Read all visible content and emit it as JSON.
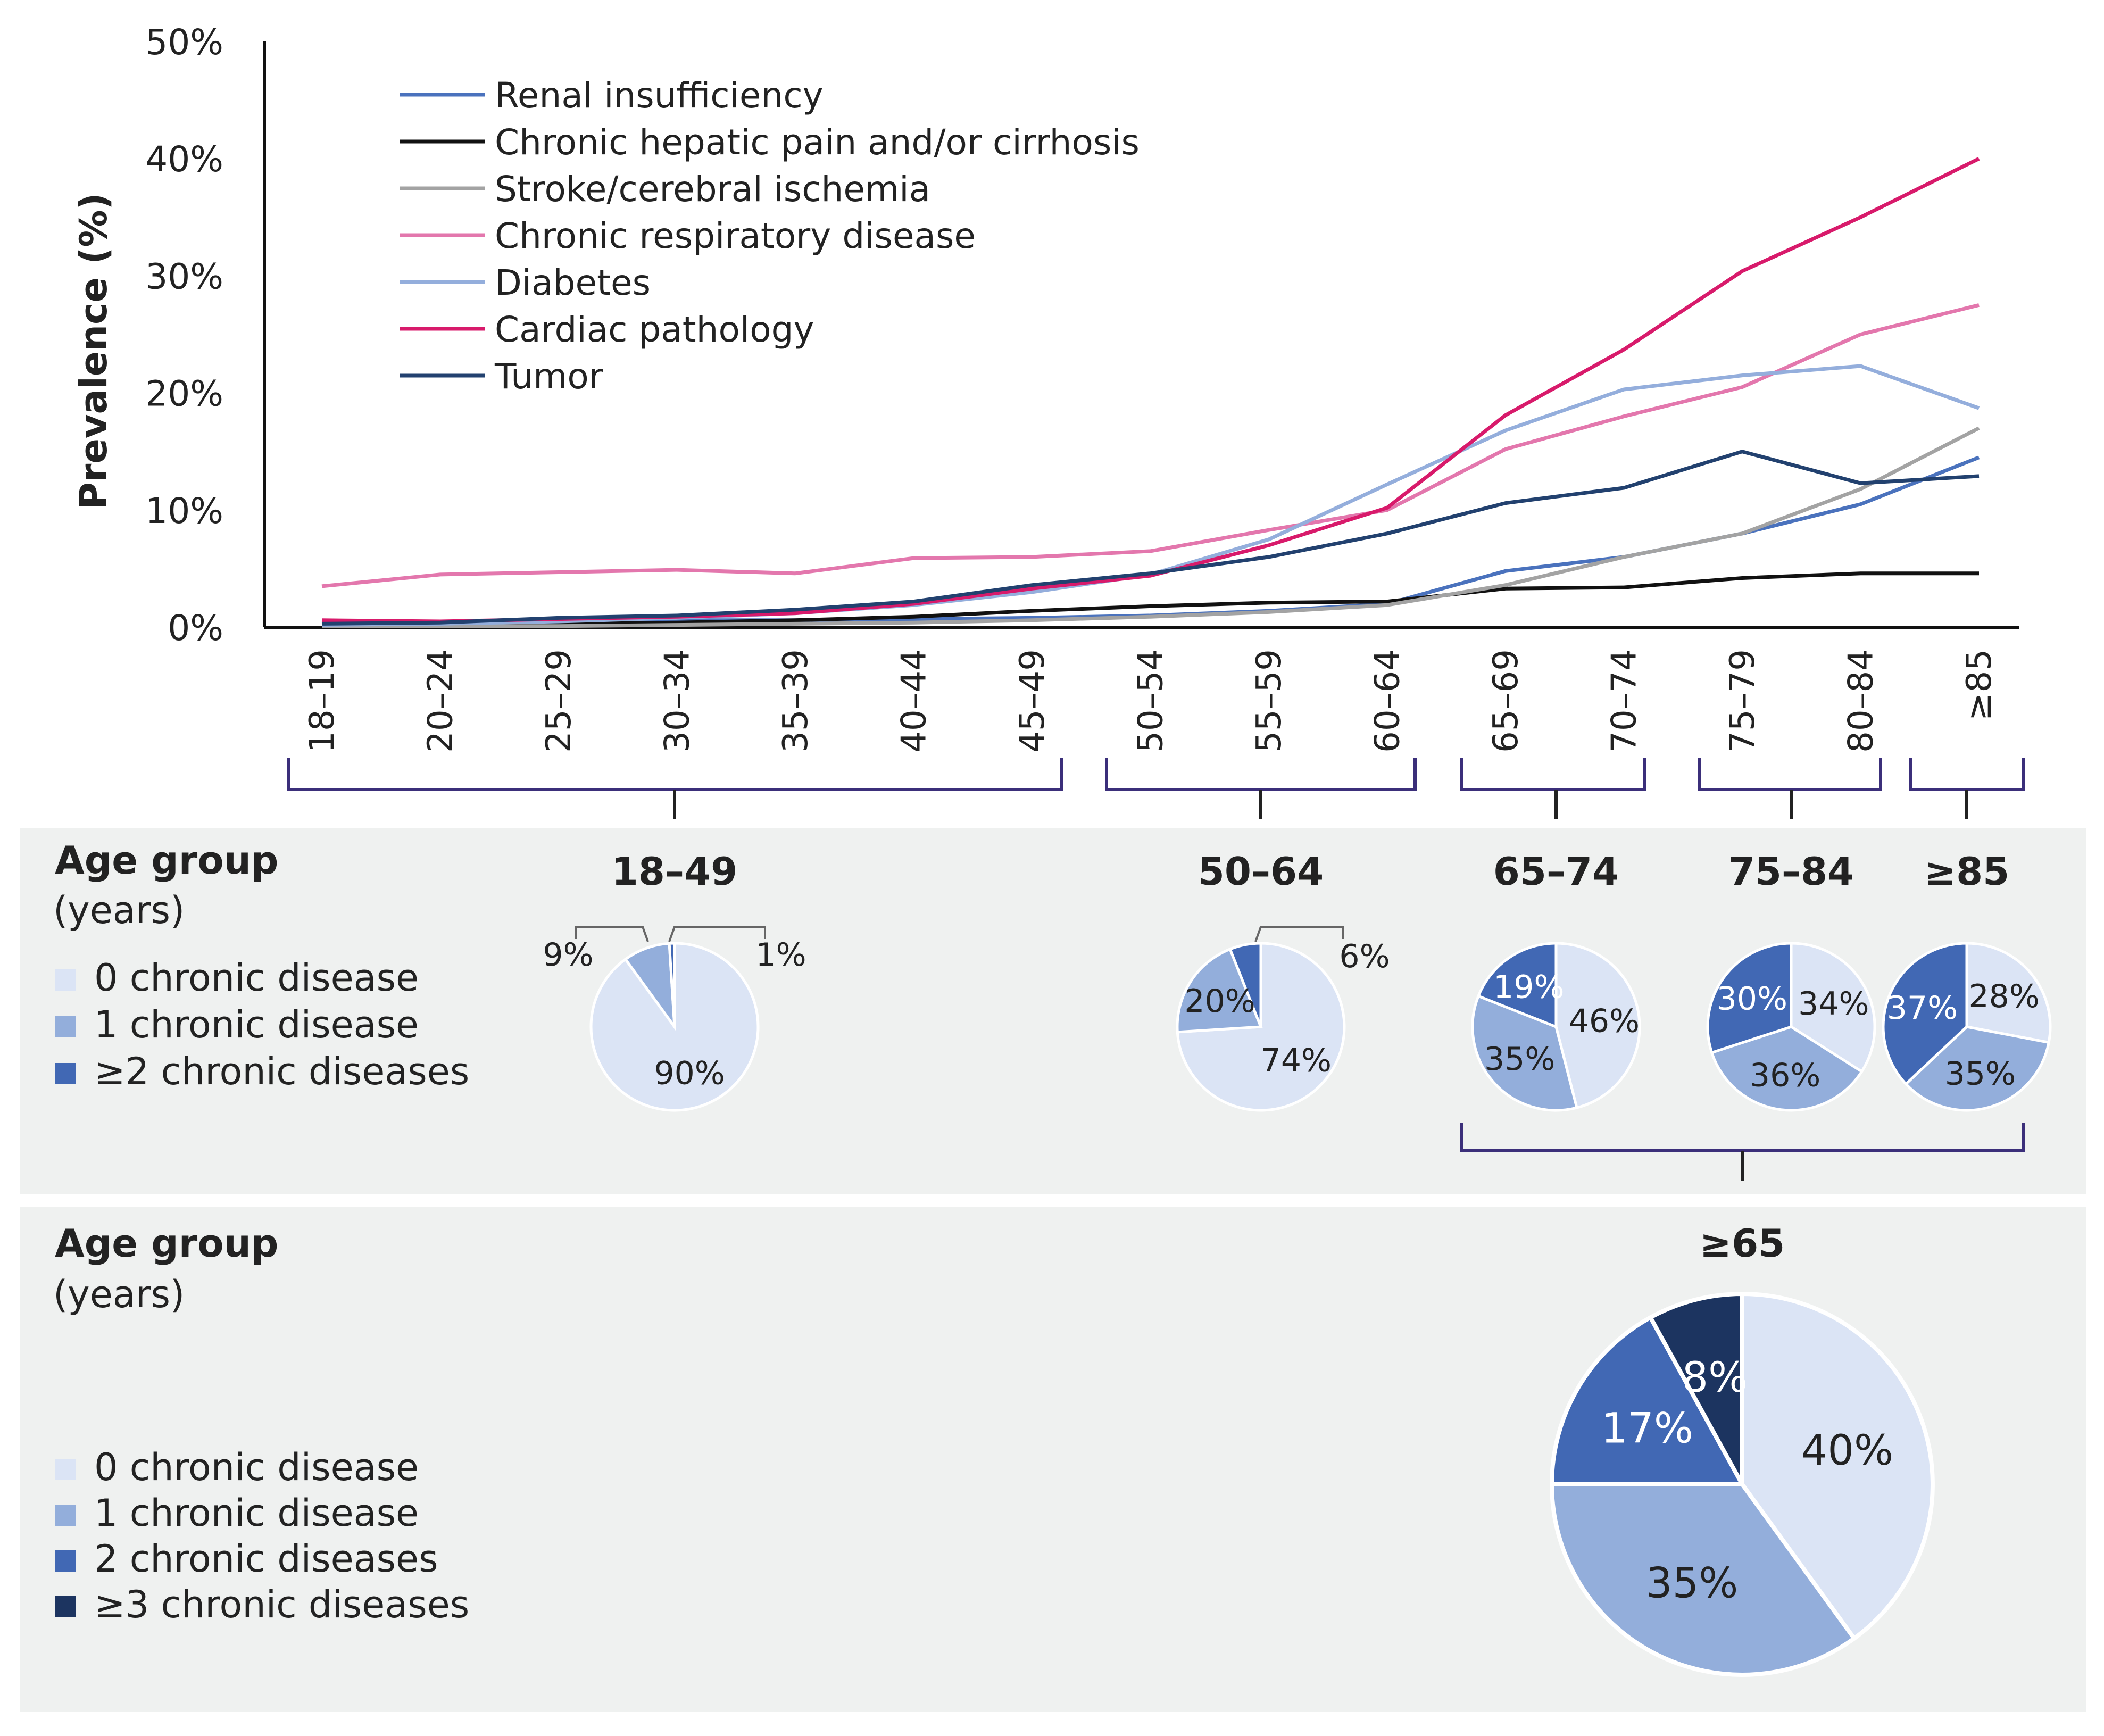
{
  "colors": {
    "renal": "#4a72bd",
    "hepatic": "#111111",
    "stroke": "#a3a3a3",
    "respiratory": "#e377ad",
    "diabetes": "#94aedc",
    "cardiac": "#d81a6b",
    "tumor": "#22416f",
    "pie0": "#dbe4f5",
    "pie1": "#93aedb",
    "pie2": "#4168b4",
    "pie3": "#1c3460",
    "bracket": "#3b2f7a",
    "panel": "#eff1f0"
  },
  "chart_data": [
    {
      "type": "line",
      "title": "",
      "xlabel": "",
      "ylabel": "Prevalence (%)",
      "ylim": [
        0,
        50
      ],
      "yticks": [
        "0%",
        "10%",
        "20%",
        "30%",
        "40%",
        "50%"
      ],
      "categories": [
        "18–19",
        "20–24",
        "25–29",
        "30–34",
        "35–39",
        "40–44",
        "45–49",
        "50–54",
        "55–59",
        "60–64",
        "65–69",
        "70–74",
        "75–79",
        "80–84",
        "≥85"
      ],
      "legend_position": "top-left",
      "series": [
        {
          "key": "renal",
          "name": "Renal insufficiency",
          "values": [
            0.3,
            0.3,
            0.5,
            0.6,
            0.6,
            0.7,
            0.8,
            1.0,
            1.4,
            2.0,
            4.8,
            6.0,
            8.0,
            10.5,
            14.5
          ]
        },
        {
          "key": "hepatic",
          "name": "Chronic hepatic pain and/or cirrhosis",
          "values": [
            0.2,
            0.2,
            0.3,
            0.4,
            0.6,
            0.9,
            1.4,
            1.8,
            2.1,
            2.2,
            3.3,
            3.4,
            4.2,
            4.6,
            4.6
          ]
        },
        {
          "key": "stroke",
          "name": "Stroke/cerebral ischemia",
          "values": [
            0.1,
            0.1,
            0.1,
            0.2,
            0.3,
            0.4,
            0.6,
            0.9,
            1.3,
            1.9,
            3.6,
            6.0,
            8.0,
            11.8,
            17.0
          ]
        },
        {
          "key": "respiratory",
          "name": "Chronic respiratory disease",
          "values": [
            3.5,
            4.5,
            4.7,
            4.9,
            4.6,
            5.9,
            6.0,
            6.5,
            8.3,
            10.0,
            15.2,
            18.0,
            20.5,
            25.0,
            27.5
          ]
        },
        {
          "key": "diabetes",
          "name": "Diabetes",
          "values": [
            0.2,
            0.3,
            0.5,
            0.8,
            1.2,
            1.9,
            3.0,
            4.5,
            7.5,
            12.2,
            16.8,
            20.3,
            21.5,
            22.3,
            18.7
          ]
        },
        {
          "key": "cardiac",
          "name": "Cardiac pathology",
          "values": [
            0.6,
            0.5,
            0.7,
            0.9,
            1.2,
            2.0,
            3.3,
            4.4,
            7.0,
            10.2,
            18.1,
            23.7,
            30.4,
            35.0,
            40.0
          ]
        },
        {
          "key": "tumor",
          "name": "Tumor",
          "values": [
            0.3,
            0.4,
            0.8,
            1.0,
            1.5,
            2.2,
            3.6,
            4.6,
            6.0,
            8.0,
            10.6,
            11.9,
            15.0,
            12.3,
            12.9
          ]
        }
      ]
    },
    {
      "type": "pie",
      "group": "18–49",
      "legend": [
        "0 chronic disease",
        "1 chronic disease",
        "≥2 chronic diseases"
      ],
      "values": [
        90,
        9,
        1
      ],
      "labels": [
        "90%",
        "9%",
        "1%"
      ]
    },
    {
      "type": "pie",
      "group": "50–64",
      "legend": [
        "0 chronic disease",
        "1 chronic disease",
        "≥2 chronic diseases"
      ],
      "values": [
        74,
        20,
        6
      ],
      "labels": [
        "74%",
        "20%",
        "6%"
      ]
    },
    {
      "type": "pie",
      "group": "65–74",
      "legend": [
        "0 chronic disease",
        "1 chronic disease",
        "≥2 chronic diseases"
      ],
      "values": [
        46,
        35,
        19
      ],
      "labels": [
        "46%",
        "35%",
        "19%"
      ]
    },
    {
      "type": "pie",
      "group": "75–84",
      "legend": [
        "0 chronic disease",
        "1 chronic disease",
        "≥2 chronic diseases"
      ],
      "values": [
        34,
        36,
        30
      ],
      "labels": [
        "34%",
        "36%",
        "30%"
      ]
    },
    {
      "type": "pie",
      "group": "≥85",
      "legend": [
        "0 chronic disease",
        "1 chronic disease",
        "≥2 chronic diseases"
      ],
      "values": [
        28,
        35,
        37
      ],
      "labels": [
        "28%",
        "35%",
        "37%"
      ]
    },
    {
      "type": "pie",
      "group": "≥65",
      "legend": [
        "0 chronic disease",
        "1 chronic disease",
        "2 chronic diseases",
        "≥3 chronic diseases"
      ],
      "values": [
        40,
        35,
        17,
        8
      ],
      "labels": [
        "40%",
        "35%",
        "17%",
        "8%"
      ]
    }
  ],
  "panel1": {
    "title": "Age group",
    "subtitle": "(years)",
    "legend": [
      "0 chronic disease",
      "1 chronic disease",
      "≥2 chronic diseases"
    ]
  },
  "panel2": {
    "title": "Age group",
    "subtitle": "(years)",
    "legend": [
      "0 chronic disease",
      "1 chronic disease",
      "2 chronic diseases",
      "≥3 chronic diseases"
    ]
  }
}
